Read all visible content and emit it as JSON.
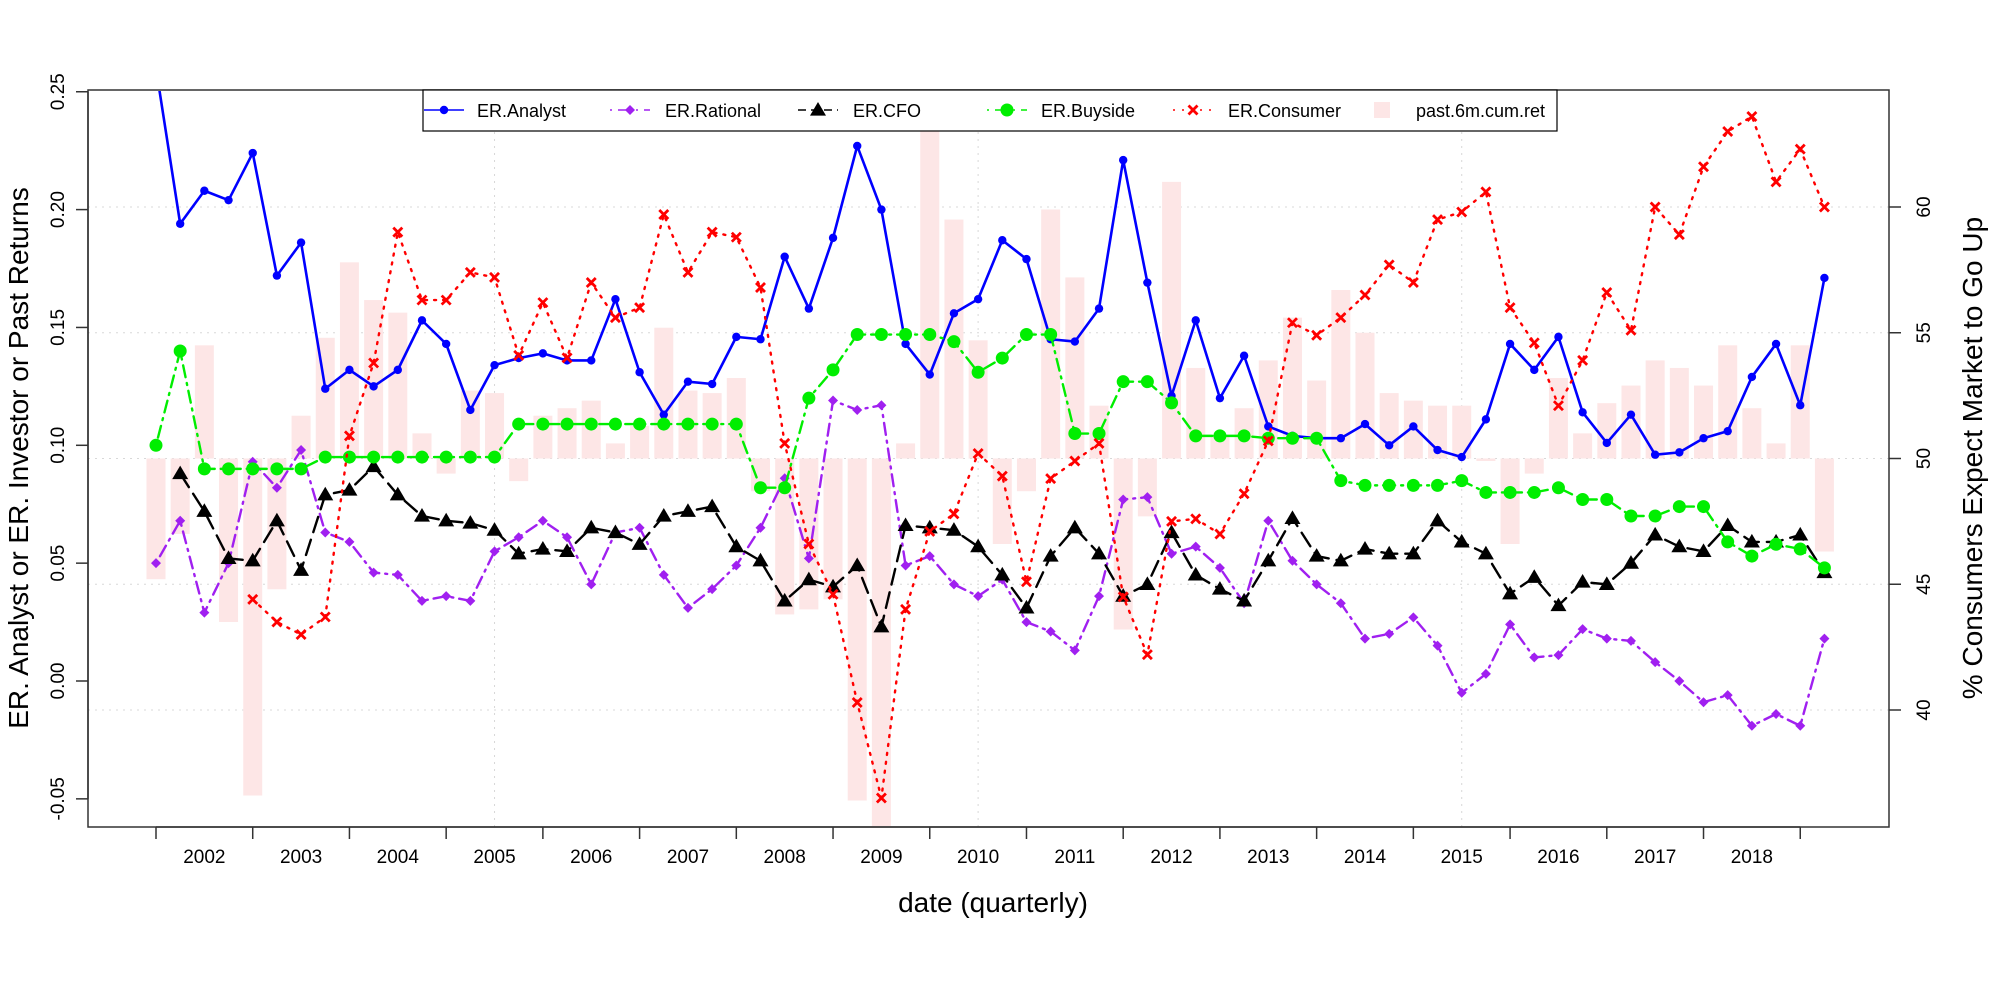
{
  "chart_data": {
    "type": "line",
    "xlabel": "date (quarterly)",
    "ylabel_left": "ER. Analyst or ER. Investor or Past Returns",
    "ylabel_right": "% Consumers Expect Market to Go Up",
    "ylim_left": [
      -0.06,
      0.25
    ],
    "ylim_right": [
      35.4,
      64.8
    ],
    "left_ticks": [
      "-0.05",
      "0.00",
      "0.05",
      "0.10",
      "0.15",
      "0.20",
      "0.25"
    ],
    "right_ticks": [
      "40",
      "45",
      "50",
      "55",
      "60"
    ],
    "x_tick_labels": [
      "2002",
      "2003",
      "2004",
      "2005",
      "2006",
      "2007",
      "2008",
      "2009",
      "2010",
      "2011",
      "2012",
      "2013",
      "2014",
      "2015",
      "2016",
      "2017",
      "2018"
    ],
    "grid": "dotted",
    "legend_position": "top",
    "x": [
      "2002Q1",
      "2002Q2",
      "2002Q3",
      "2002Q4",
      "2003Q1",
      "2003Q2",
      "2003Q3",
      "2003Q4",
      "2004Q1",
      "2004Q2",
      "2004Q3",
      "2004Q4",
      "2005Q1",
      "2005Q2",
      "2005Q3",
      "2005Q4",
      "2006Q1",
      "2006Q2",
      "2006Q3",
      "2006Q4",
      "2007Q1",
      "2007Q2",
      "2007Q3",
      "2007Q4",
      "2008Q1",
      "2008Q2",
      "2008Q3",
      "2008Q4",
      "2009Q1",
      "2009Q2",
      "2009Q3",
      "2009Q4",
      "2010Q1",
      "2010Q2",
      "2010Q3",
      "2010Q4",
      "2011Q1",
      "2011Q2",
      "2011Q3",
      "2011Q4",
      "2012Q1",
      "2012Q2",
      "2012Q3",
      "2012Q4",
      "2013Q1",
      "2013Q2",
      "2013Q3",
      "2013Q4",
      "2014Q1",
      "2014Q2",
      "2014Q3",
      "2014Q4",
      "2015Q1",
      "2015Q2",
      "2015Q3",
      "2015Q4",
      "2016Q1",
      "2016Q2",
      "2016Q3",
      "2016Q4",
      "2017Q1",
      "2017Q2",
      "2017Q3",
      "2017Q4",
      "2018Q1",
      "2018Q2",
      "2018Q3",
      "2018Q4",
      "2019Q1",
      "2019Q2"
    ],
    "series": [
      {
        "name": "ER.Analyst",
        "axis": "left",
        "color": "#0000FF",
        "style": "solid",
        "marker": "circle",
        "values": [
          0.26,
          0.194,
          0.208,
          0.204,
          0.224,
          0.172,
          0.186,
          0.124,
          0.132,
          0.125,
          0.132,
          0.153,
          0.143,
          0.115,
          0.134,
          0.137,
          0.139,
          0.136,
          0.136,
          0.162,
          0.131,
          0.113,
          0.127,
          0.126,
          0.146,
          0.145,
          0.18,
          0.158,
          0.188,
          0.227,
          0.2,
          0.143,
          0.13,
          0.156,
          0.162,
          0.187,
          0.179,
          0.145,
          0.144,
          0.158,
          0.221,
          0.169,
          0.121,
          0.153,
          0.12,
          0.138,
          0.108,
          0.104,
          0.103,
          0.103,
          0.109,
          0.1,
          0.108,
          0.098,
          0.095,
          0.111,
          0.143,
          0.132,
          0.146,
          0.114,
          0.101,
          0.113,
          0.096,
          0.097,
          0.103,
          0.106,
          0.129,
          0.143,
          0.117,
          0.171
        ]
      },
      {
        "name": "ER.Rational",
        "axis": "left",
        "color": "#A020F0",
        "style": "dotdash",
        "marker": "diamond",
        "values": [
          0.05,
          0.068,
          0.029,
          0.05,
          0.093,
          0.082,
          0.098,
          0.063,
          0.059,
          0.046,
          0.045,
          0.034,
          0.036,
          0.034,
          0.055,
          0.061,
          0.068,
          0.061,
          0.041,
          0.063,
          0.065,
          0.045,
          0.031,
          0.039,
          0.049,
          0.065,
          0.086,
          0.052,
          0.119,
          0.115,
          0.117,
          0.049,
          0.053,
          0.041,
          0.036,
          0.043,
          0.025,
          0.021,
          0.013,
          0.036,
          0.077,
          0.078,
          0.054,
          0.057,
          0.048,
          0.033,
          0.068,
          0.051,
          0.041,
          0.033,
          0.018,
          0.02,
          0.027,
          0.015,
          -0.005,
          0.003,
          0.024,
          0.01,
          0.011,
          0.022,
          0.018,
          0.017,
          0.008,
          0.0,
          -0.009,
          -0.006,
          -0.019,
          -0.014,
          -0.019,
          0.018
        ]
      },
      {
        "name": "ER.CFO",
        "axis": "left",
        "color": "#000000",
        "style": "dashed",
        "marker": "triangle",
        "values": [
          null,
          0.088,
          0.072,
          0.052,
          0.051,
          0.068,
          0.047,
          0.079,
          0.081,
          0.091,
          0.079,
          0.07,
          0.068,
          0.067,
          0.064,
          0.054,
          0.056,
          0.055,
          0.065,
          0.063,
          0.058,
          0.07,
          0.072,
          0.074,
          0.057,
          0.051,
          0.034,
          0.043,
          0.04,
          0.049,
          0.023,
          0.066,
          0.065,
          0.064,
          0.057,
          0.045,
          0.031,
          0.053,
          0.065,
          0.054,
          0.036,
          0.041,
          0.063,
          0.045,
          0.039,
          0.034,
          0.051,
          0.069,
          0.053,
          0.051,
          0.056,
          0.054,
          0.054,
          0.068,
          0.059,
          0.054,
          0.037,
          0.044,
          0.032,
          0.042,
          0.041,
          0.05,
          0.062,
          0.057,
          0.055,
          0.066,
          0.059,
          0.059,
          0.062,
          0.046
        ]
      },
      {
        "name": "ER.Buyside",
        "axis": "left",
        "color": "#00EE00",
        "style": "dotdash",
        "marker": "circle",
        "values": [
          0.1,
          0.14,
          0.09,
          0.09,
          0.09,
          0.09,
          0.09,
          0.095,
          0.095,
          0.095,
          0.095,
          0.095,
          0.095,
          0.095,
          0.095,
          0.109,
          0.109,
          0.109,
          0.109,
          0.109,
          0.109,
          0.109,
          0.109,
          0.109,
          0.109,
          0.082,
          0.082,
          0.12,
          0.132,
          0.147,
          0.147,
          0.147,
          0.147,
          0.144,
          0.131,
          0.137,
          0.147,
          0.147,
          0.105,
          0.105,
          0.127,
          0.127,
          0.118,
          0.104,
          0.104,
          0.104,
          0.103,
          0.103,
          0.103,
          0.085,
          0.083,
          0.083,
          0.083,
          0.083,
          0.085,
          0.08,
          0.08,
          0.08,
          0.082,
          0.077,
          0.077,
          0.07,
          0.07,
          0.074,
          0.074,
          0.059,
          0.053,
          0.058,
          0.056,
          0.048
        ]
      },
      {
        "name": "ER.Consumer",
        "axis": "right",
        "color": "#FF0000",
        "style": "dotted",
        "marker": "cross",
        "values": [
          null,
          null,
          null,
          null,
          44.4,
          43.5,
          43.0,
          43.7,
          50.9,
          53.8,
          59.0,
          56.3,
          56.3,
          57.4,
          57.2,
          54.1,
          56.2,
          54.0,
          57.0,
          55.6,
          56.0,
          59.7,
          57.4,
          59.0,
          58.8,
          56.8,
          50.6,
          46.6,
          44.6,
          40.3,
          36.5,
          44.0,
          47.1,
          47.8,
          50.2,
          49.3,
          45.1,
          49.2,
          49.9,
          50.6,
          44.5,
          42.2,
          47.5,
          47.6,
          47.0,
          48.6,
          50.7,
          55.4,
          54.9,
          55.6,
          56.5,
          57.7,
          57.0,
          59.5,
          59.8,
          60.6,
          56.0,
          54.6,
          52.1,
          53.9,
          56.6,
          55.1,
          60.0,
          58.9,
          61.6,
          63.0,
          63.6,
          61.0,
          62.3,
          60.0
        ]
      },
      {
        "name": "past.6m.cum.ret",
        "axis": "right",
        "type": "bar",
        "color": "#FDE6E6",
        "baseline": 50,
        "values": [
          45.2,
          47.0,
          54.5,
          43.5,
          36.6,
          44.8,
          51.7,
          54.8,
          57.8,
          56.3,
          55.8,
          51.0,
          49.4,
          52.7,
          52.6,
          49.1,
          51.7,
          52.0,
          52.3,
          50.6,
          51.3,
          55.2,
          52.7,
          52.6,
          53.2,
          48.7,
          43.8,
          44.0,
          44.4,
          36.4,
          35.0,
          50.6,
          65.5,
          59.5,
          54.7,
          46.6,
          48.7,
          59.9,
          57.2,
          52.1,
          43.2,
          47.7,
          61.0,
          53.6,
          50.9,
          52.0,
          53.9,
          55.6,
          53.1,
          56.7,
          55.0,
          52.6,
          52.3,
          52.1,
          52.1,
          49.9,
          46.6,
          49.4,
          53.2,
          51.0,
          52.2,
          52.9,
          53.9,
          53.6,
          52.9,
          54.5,
          52.0,
          50.6,
          54.5,
          46.3
        ]
      }
    ]
  }
}
